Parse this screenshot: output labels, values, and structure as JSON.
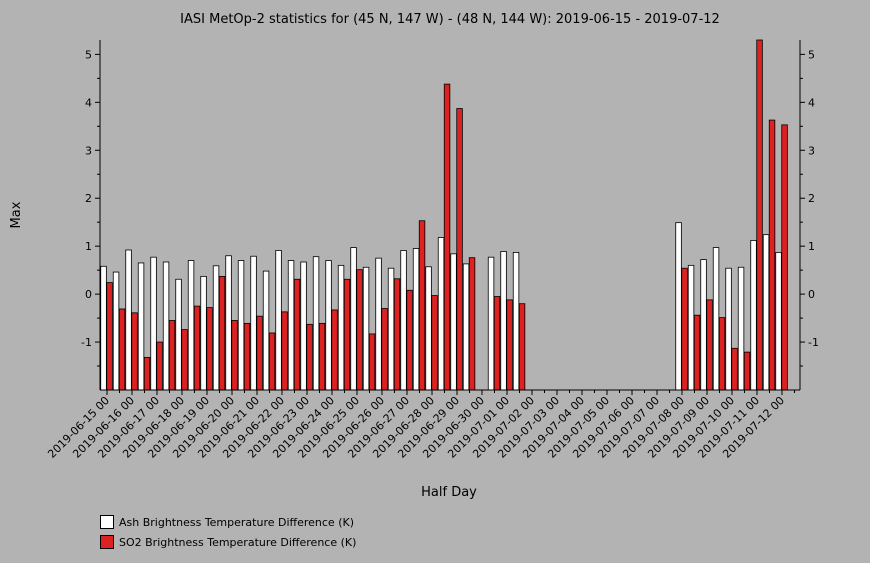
{
  "chart_data": {
    "type": "bar",
    "title": "IASI MetOp-2 statistics for (45 N, 147 W) - (48 N, 144 W): 2019-06-15 - 2019-07-12",
    "xlabel": "Half Day",
    "ylabel": "Max",
    "ylim": [
      -2,
      5.3
    ],
    "yticks": [
      -1,
      0,
      1,
      2,
      3,
      4,
      5
    ],
    "ytick_labels": [
      "-1",
      "0",
      "1",
      "2",
      "3",
      "4",
      "5"
    ],
    "grid": false,
    "legend_position": "bottom-left",
    "categories": [
      "2019-06-15 00",
      "2019-06-15 12",
      "2019-06-16 00",
      "2019-06-16 12",
      "2019-06-17 00",
      "2019-06-17 12",
      "2019-06-18 00",
      "2019-06-18 12",
      "2019-06-19 00",
      "2019-06-19 12",
      "2019-06-20 00",
      "2019-06-20 12",
      "2019-06-21 00",
      "2019-06-21 12",
      "2019-06-22 00",
      "2019-06-22 12",
      "2019-06-23 00",
      "2019-06-23 12",
      "2019-06-24 00",
      "2019-06-24 12",
      "2019-06-25 00",
      "2019-06-25 12",
      "2019-06-26 00",
      "2019-06-26 12",
      "2019-06-27 00",
      "2019-06-27 12",
      "2019-06-28 00",
      "2019-06-28 12",
      "2019-06-29 00",
      "2019-06-29 12",
      "2019-06-30 00",
      "2019-06-30 12",
      "2019-07-01 00",
      "2019-07-01 12",
      "2019-07-02 00",
      "2019-07-02 12",
      "2019-07-03 00",
      "2019-07-03 12",
      "2019-07-04 00",
      "2019-07-04 12",
      "2019-07-05 00",
      "2019-07-05 12",
      "2019-07-06 00",
      "2019-07-06 12",
      "2019-07-07 00",
      "2019-07-07 12",
      "2019-07-08 00",
      "2019-07-08 12",
      "2019-07-09 00",
      "2019-07-09 12",
      "2019-07-10 00",
      "2019-07-10 12",
      "2019-07-11 00",
      "2019-07-11 12",
      "2019-07-12 00",
      "2019-07-12 12"
    ],
    "xtick_labels": [
      "2019-06-15 00",
      "2019-06-16 00",
      "2019-06-17 00",
      "2019-06-18 00",
      "2019-06-19 00",
      "2019-06-20 00",
      "2019-06-21 00",
      "2019-06-22 00",
      "2019-06-23 00",
      "2019-06-24 00",
      "2019-06-25 00",
      "2019-06-26 00",
      "2019-06-27 00",
      "2019-06-28 00",
      "2019-06-29 00",
      "2019-06-30 00",
      "2019-07-01 00",
      "2019-07-02 00",
      "2019-07-03 00",
      "2019-07-04 00",
      "2019-07-05 00",
      "2019-07-06 00",
      "2019-07-07 00",
      "2019-07-08 00",
      "2019-07-09 00",
      "2019-07-10 00",
      "2019-07-11 00",
      "2019-07-12 00"
    ],
    "series": [
      {
        "name": "Ash Brightness Temperature Difference (K)",
        "color": "#ffffff",
        "values": [
          0.58,
          0.46,
          0.92,
          0.65,
          0.77,
          0.67,
          0.31,
          0.7,
          0.37,
          0.59,
          0.8,
          0.7,
          0.79,
          0.48,
          0.91,
          0.7,
          0.67,
          0.78,
          0.7,
          0.6,
          0.97,
          0.56,
          0.75,
          0.54,
          0.91,
          0.95,
          0.57,
          1.18,
          0.84,
          0.63,
          null,
          0.77,
          0.89,
          0.87,
          null,
          null,
          null,
          null,
          null,
          null,
          null,
          null,
          null,
          null,
          null,
          null,
          1.49,
          0.6,
          0.72,
          0.97,
          0.54,
          0.56,
          1.12,
          1.24,
          0.87,
          null
        ]
      },
      {
        "name": "SO2 Brightness Temperature Difference (K)",
        "color": "#dd2222",
        "values": [
          0.24,
          -0.31,
          -0.39,
          -1.32,
          -1.0,
          -0.55,
          -0.74,
          -0.25,
          -0.28,
          0.37,
          -0.55,
          -0.61,
          -0.46,
          -0.81,
          -0.37,
          0.31,
          -0.63,
          -0.61,
          -0.33,
          0.31,
          0.51,
          -0.83,
          -0.3,
          0.32,
          0.08,
          1.53,
          -0.03,
          4.38,
          3.87,
          0.76,
          null,
          -0.05,
          -0.12,
          -0.2,
          null,
          null,
          null,
          null,
          null,
          null,
          null,
          null,
          null,
          null,
          null,
          null,
          0.54,
          -0.44,
          -0.12,
          -0.49,
          -1.13,
          -1.21,
          5.3,
          3.63,
          3.53,
          null
        ]
      }
    ]
  }
}
